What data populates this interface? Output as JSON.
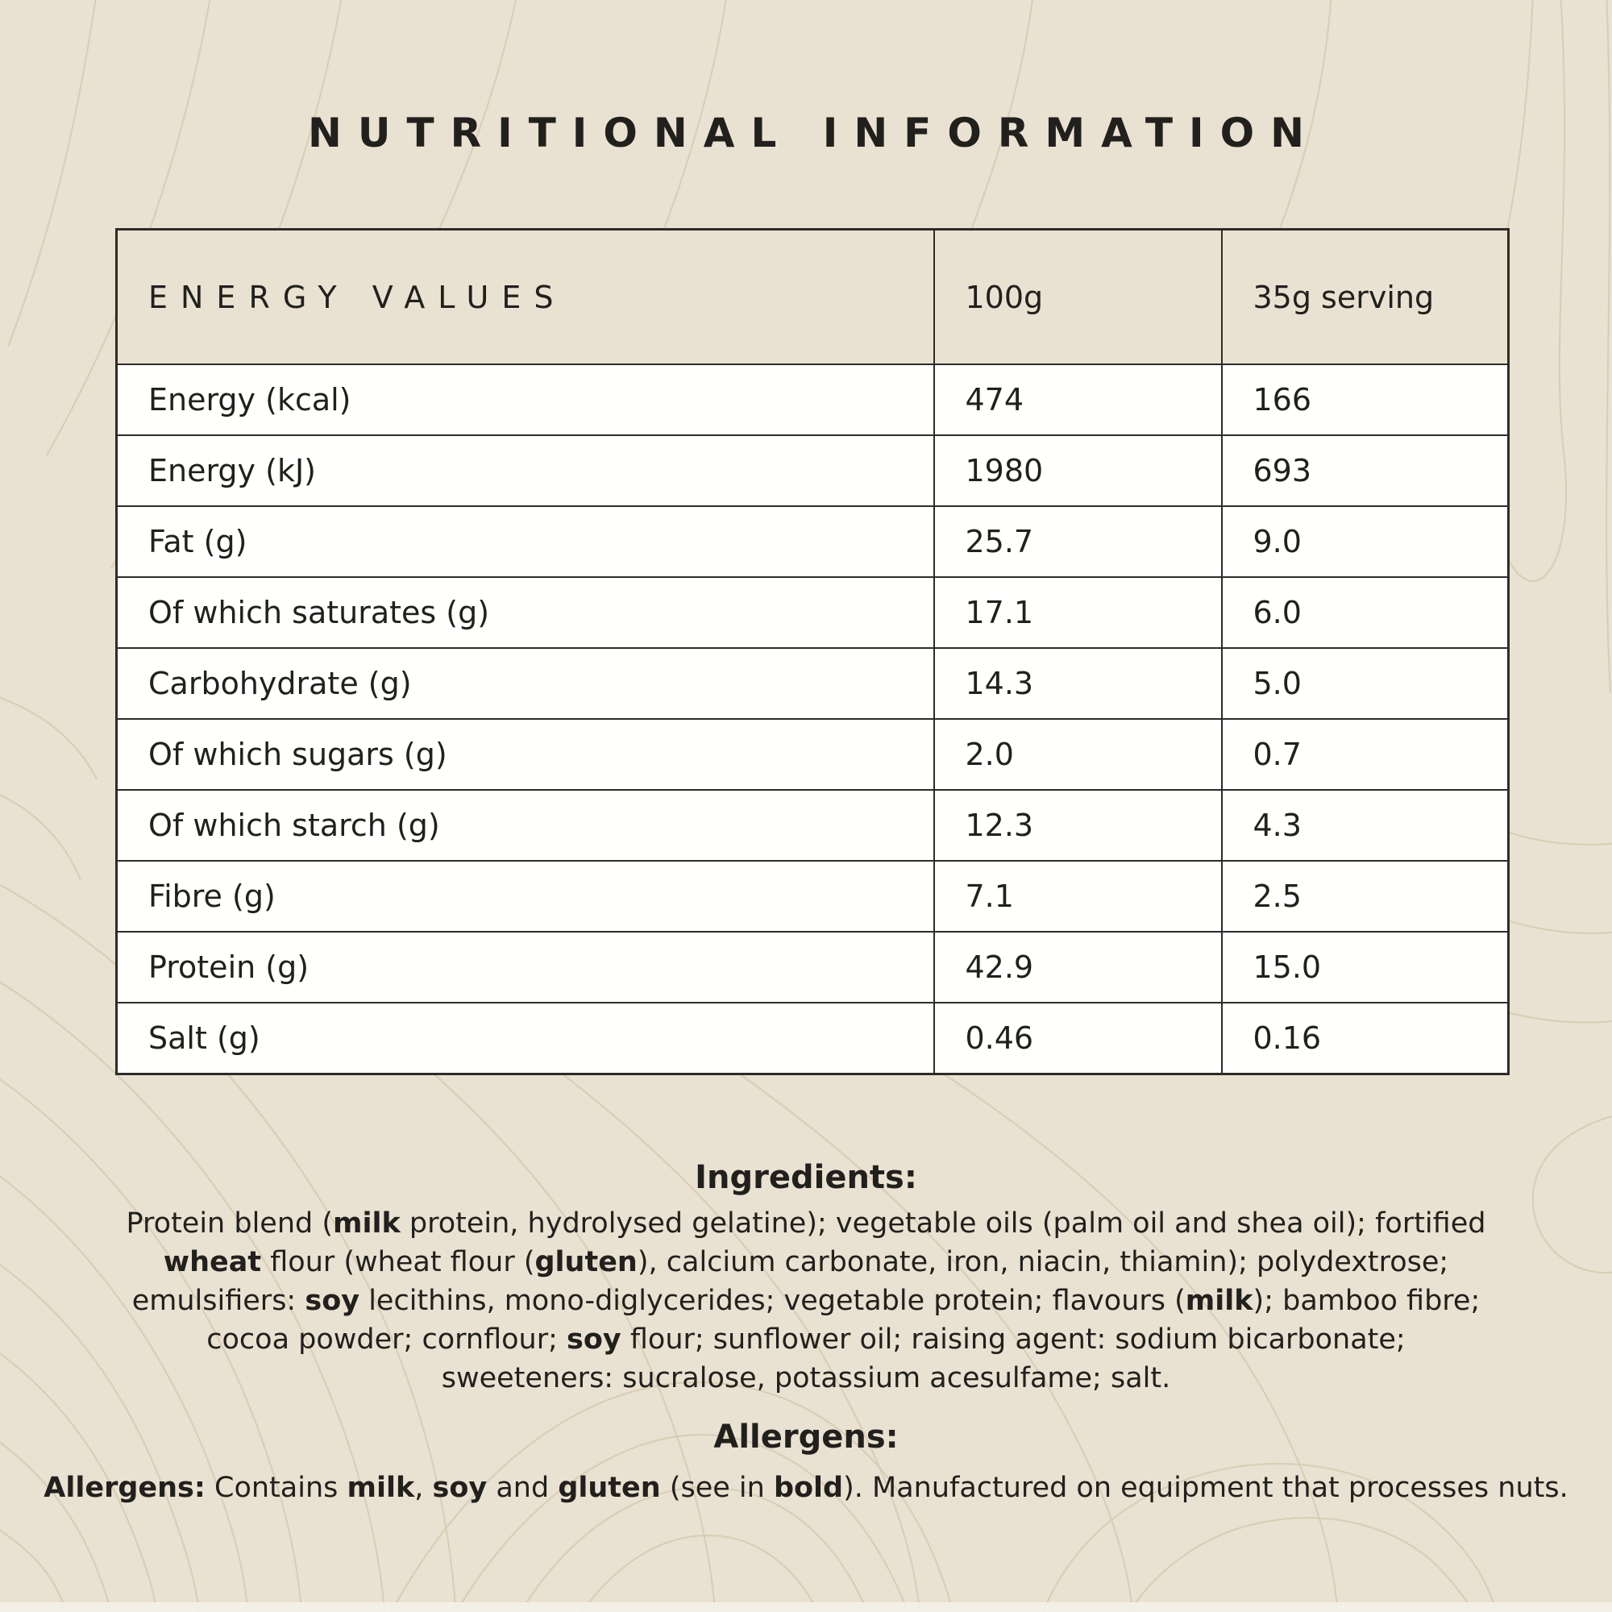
{
  "colors": {
    "background": "#e9e2d2",
    "contour": "#d6cab2",
    "table_border": "#2e2c29",
    "header_bg": "#e9e2d2",
    "cell_bg": "#fffffe",
    "text": "#22201d",
    "bottom_strip": "#f2f0e8"
  },
  "title": "NUTRITIONAL INFORMATION",
  "table": {
    "columns": [
      "ENERGY VALUES",
      "100g",
      "35g serving"
    ],
    "rows": [
      {
        "label": "Energy (kcal)",
        "per_100g": "474",
        "per_serving": "166"
      },
      {
        "label": "Energy (kJ)",
        "per_100g": "1980",
        "per_serving": "693"
      },
      {
        "label": "Fat (g)",
        "per_100g": "25.7",
        "per_serving": "9.0"
      },
      {
        "label": "Of which saturates (g)",
        "per_100g": "17.1",
        "per_serving": "6.0"
      },
      {
        "label": "Carbohydrate (g)",
        "per_100g": "14.3",
        "per_serving": "5.0"
      },
      {
        "label": "Of which sugars (g)",
        "per_100g": "2.0",
        "per_serving": "0.7"
      },
      {
        "label": "Of which starch (g)",
        "per_100g": "12.3",
        "per_serving": "4.3"
      },
      {
        "label": "Fibre (g)",
        "per_100g": "7.1",
        "per_serving": "2.5"
      },
      {
        "label": "Protein (g)",
        "per_100g": "42.9",
        "per_serving": "15.0"
      },
      {
        "label": "Salt (g)",
        "per_100g": "0.46",
        "per_serving": "0.16"
      }
    ]
  },
  "ingredients": {
    "heading": "Ingredients:",
    "lines": [
      [
        {
          "text": "Protein blend ("
        },
        {
          "text": "milk",
          "bold": true
        },
        {
          "text": " protein, hydrolysed gelatine); vegetable oils (palm oil and shea oil); fortified"
        }
      ],
      [
        {
          "text": "wheat",
          "bold": true
        },
        {
          "text": " flour (wheat flour ("
        },
        {
          "text": "gluten",
          "bold": true
        },
        {
          "text": "), calcium carbonate, iron, niacin, thiamin); polydextrose;"
        }
      ],
      [
        {
          "text": "emulsifiers: "
        },
        {
          "text": "soy",
          "bold": true
        },
        {
          "text": " lecithins, mono-diglycerides; vegetable protein; flavours ("
        },
        {
          "text": "milk",
          "bold": true
        },
        {
          "text": "); bamboo fibre;"
        }
      ],
      [
        {
          "text": "cocoa powder; cornflour; "
        },
        {
          "text": "soy",
          "bold": true
        },
        {
          "text": " flour; sunflower oil; raising agent: sodium bicarbonate;"
        }
      ],
      [
        {
          "text": "sweeteners: sucralose, potassium acesulfame; salt."
        }
      ]
    ]
  },
  "allergens": {
    "heading": "Allergens:",
    "line": [
      {
        "text": "Allergens:",
        "bold": true
      },
      {
        "text": " Contains "
      },
      {
        "text": "milk",
        "bold": true
      },
      {
        "text": ", "
      },
      {
        "text": "soy",
        "bold": true
      },
      {
        "text": " and "
      },
      {
        "text": "gluten",
        "bold": true
      },
      {
        "text": " (see in "
      },
      {
        "text": "bold",
        "bold": true
      },
      {
        "text": "). Manufactured on equipment that processes nuts."
      }
    ]
  }
}
